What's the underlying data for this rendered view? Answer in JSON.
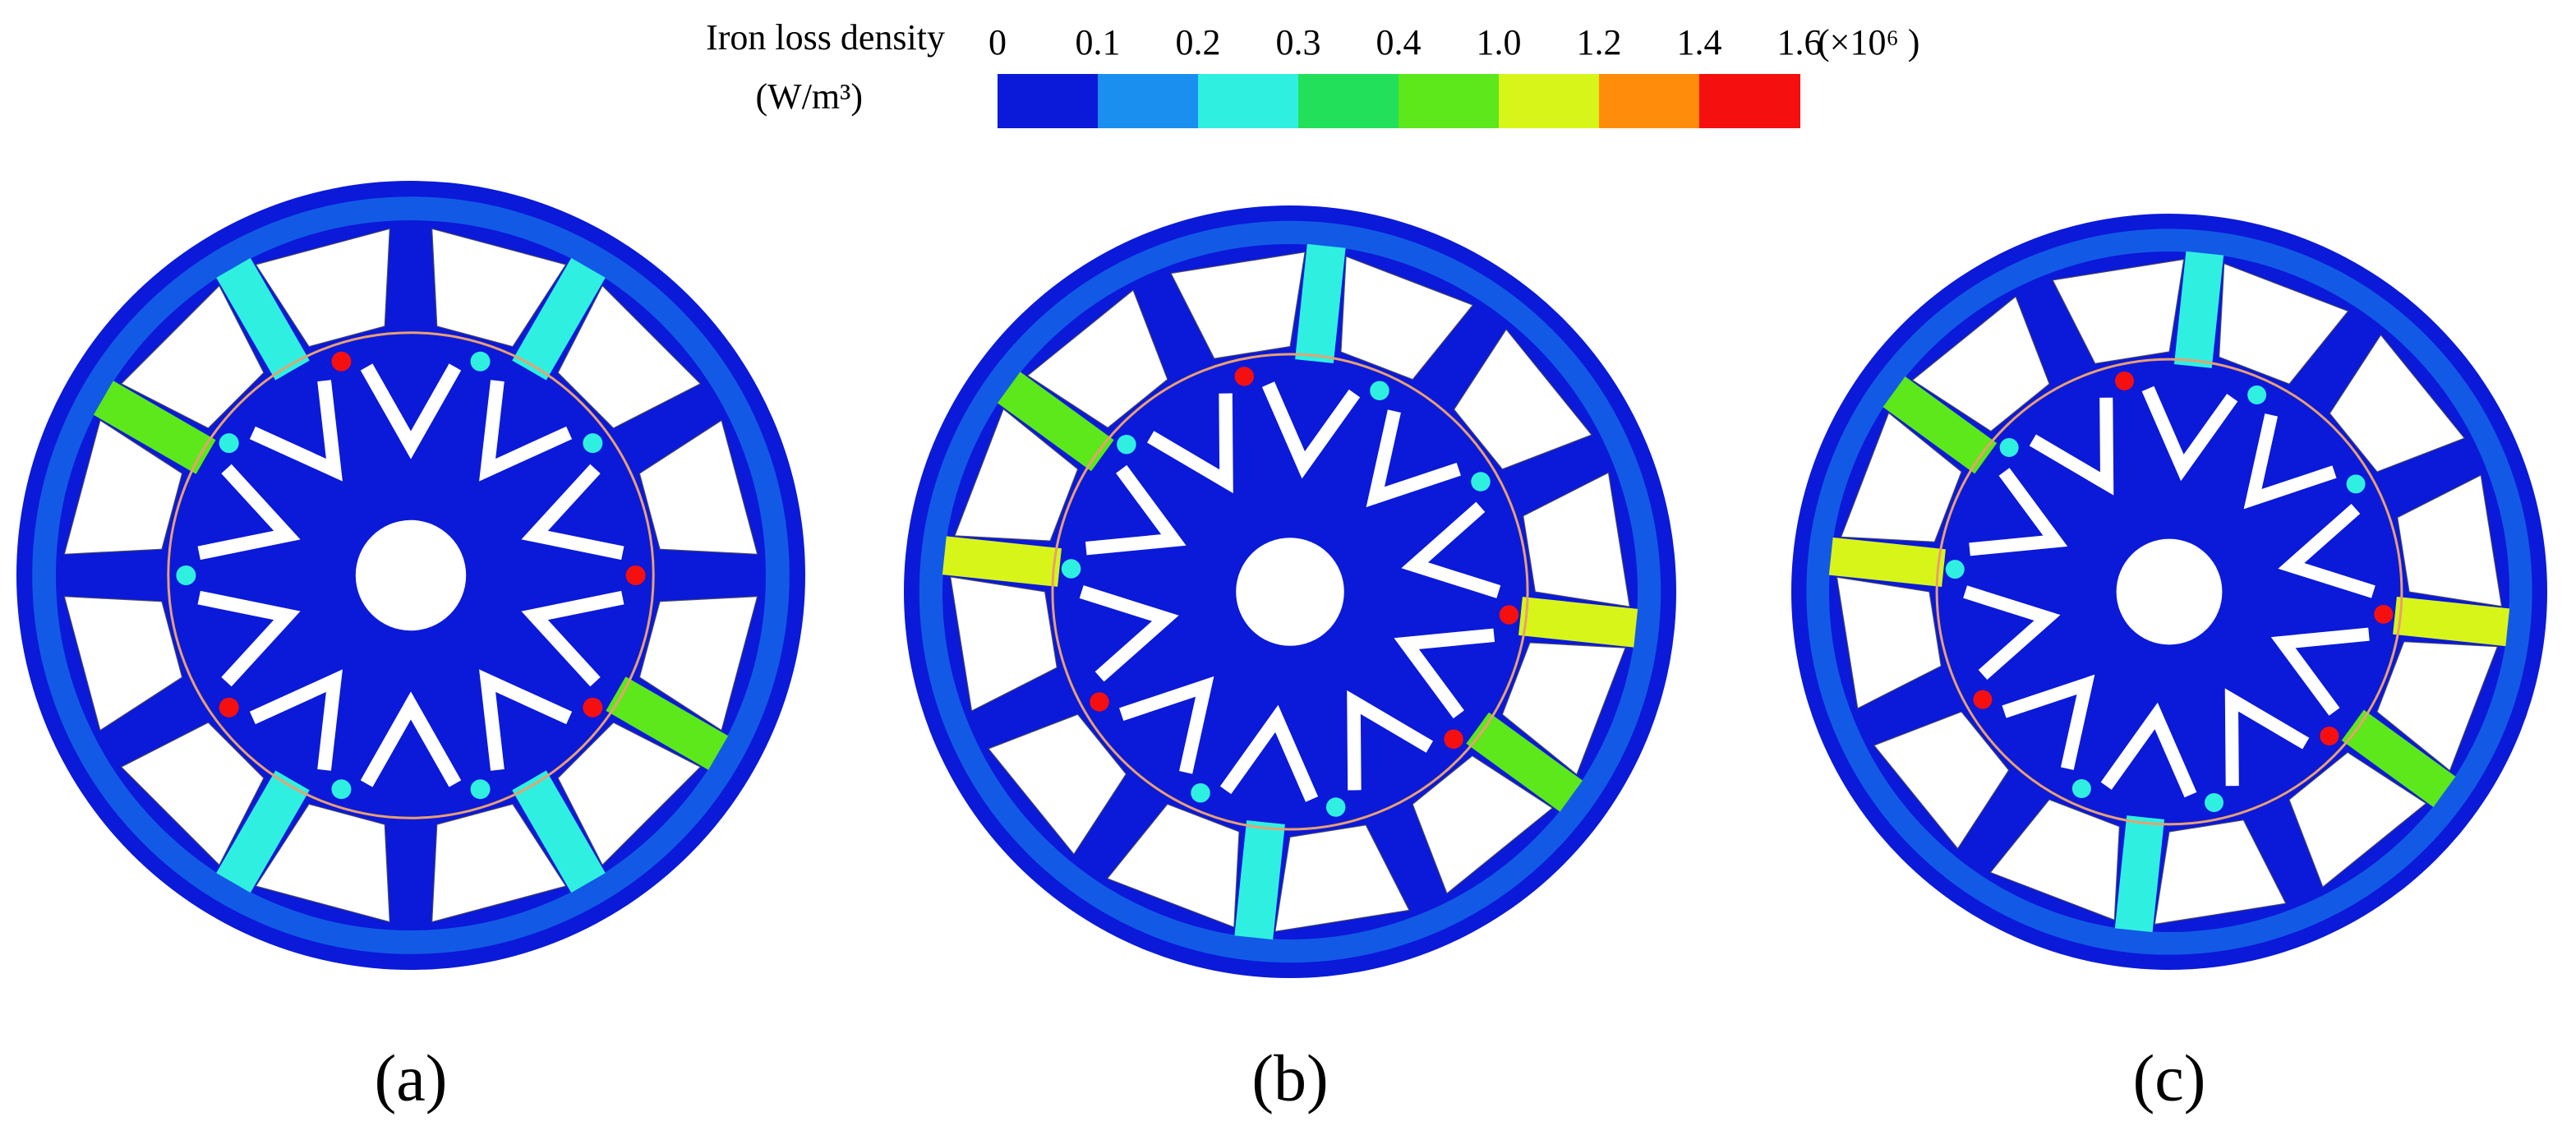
{
  "legend": {
    "title": "Iron loss density",
    "unit": "(W/m³)",
    "ticks": [
      "0",
      "0.1",
      "0.2",
      "0.3",
      "0.4",
      "1.0",
      "1.2",
      "1.4",
      "1.6"
    ],
    "multiplier": "(×10⁶ )",
    "colors": [
      "#0b19d9",
      "#1a8ff0",
      "#2ff0e0",
      "#22e05a",
      "#5ce81a",
      "#d8f51a",
      "#ff8c0a",
      "#f50f0f"
    ]
  },
  "panels": [
    {
      "label": "(a)"
    },
    {
      "label": "(b)"
    },
    {
      "label": "(c)"
    }
  ]
}
